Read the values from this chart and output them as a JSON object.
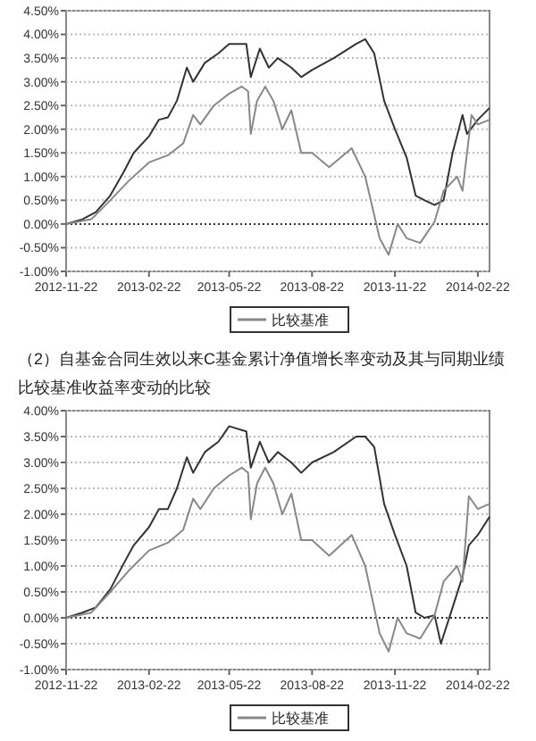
{
  "chart_data": [
    {
      "type": "line",
      "xlim": [
        "2012-11-22",
        "2014-03-07"
      ],
      "xticks": [
        "2012-11-22",
        "2013-02-22",
        "2013-05-22",
        "2013-08-22",
        "2013-11-22",
        "2014-02-22"
      ],
      "ref_lines": [
        {
          "axis": "y",
          "value": 0,
          "color": "#333333",
          "line_style": "dotted"
        }
      ],
      "ylim": [
        -1,
        4.5
      ],
      "yticks": [
        {
          "value": -1,
          "label": "-1.00%"
        },
        {
          "value": -0.5,
          "label": "-0.50%"
        },
        {
          "value": 0,
          "label": "0.00%"
        },
        {
          "value": 0.5,
          "label": "0.50%"
        },
        {
          "value": 1,
          "label": "1.00%"
        },
        {
          "value": 1.5,
          "label": "1.50%"
        },
        {
          "value": 2,
          "label": "2.00%"
        },
        {
          "value": 2.5,
          "label": "2.50%"
        },
        {
          "value": 3,
          "label": "3.00%"
        },
        {
          "value": 3.5,
          "label": "3.50%"
        },
        {
          "value": 4,
          "label": "4.00%"
        },
        {
          "value": 4.5,
          "label": "4.50%"
        }
      ],
      "grid": "y",
      "legend": "bottom",
      "line_style": "solid",
      "series": [
        {
          "color": "#333333",
          "x": [
            "2012-11-22",
            "2012-12-10",
            "2012-12-25",
            "2013-01-10",
            "2013-01-25",
            "2013-02-05",
            "2013-02-22",
            "2013-03-05",
            "2013-03-15",
            "2013-03-25",
            "2013-04-05",
            "2013-04-12",
            "2013-04-25",
            "2013-05-10",
            "2013-05-22",
            "2013-06-10",
            "2013-06-15",
            "2013-06-25",
            "2013-07-05",
            "2013-07-15",
            "2013-07-30",
            "2013-08-10",
            "2013-08-22",
            "2013-09-15",
            "2013-10-10",
            "2013-10-20",
            "2013-10-30",
            "2013-11-10",
            "2013-11-22",
            "2013-12-05",
            "2013-12-15",
            "2013-12-25",
            "2014-01-05",
            "2014-01-15",
            "2014-01-25",
            "2014-02-05",
            "2014-02-10",
            "2014-02-22",
            "2014-03-07"
          ],
          "values": [
            0,
            0.1,
            0.25,
            0.6,
            1.1,
            1.5,
            1.85,
            2.2,
            2.25,
            2.6,
            3.3,
            3.0,
            3.4,
            3.6,
            3.8,
            3.8,
            3.1,
            3.7,
            3.3,
            3.5,
            3.3,
            3.1,
            3.25,
            3.5,
            3.8,
            3.9,
            3.6,
            2.6,
            2.0,
            1.4,
            0.6,
            0.5,
            0.4,
            0.5,
            1.5,
            2.3,
            1.9,
            2.2,
            2.45
          ]
        },
        {
          "name": "比较基准",
          "color": "#888888",
          "x": [
            "2012-11-22",
            "2012-12-20",
            "2013-01-10",
            "2013-01-30",
            "2013-02-22",
            "2013-03-15",
            "2013-04-01",
            "2013-04-12",
            "2013-04-20",
            "2013-05-05",
            "2013-05-22",
            "2013-06-05",
            "2013-06-12",
            "2013-06-15",
            "2013-06-22",
            "2013-07-01",
            "2013-07-10",
            "2013-07-20",
            "2013-07-30",
            "2013-08-10",
            "2013-08-22",
            "2013-09-10",
            "2013-10-05",
            "2013-10-20",
            "2013-11-05",
            "2013-11-15",
            "2013-11-25",
            "2013-12-05",
            "2013-12-20",
            "2014-01-05",
            "2014-01-15",
            "2014-01-30",
            "2014-02-05",
            "2014-02-15",
            "2014-02-22",
            "2014-03-07"
          ],
          "values": [
            0,
            0.1,
            0.5,
            0.9,
            1.3,
            1.45,
            1.7,
            2.3,
            2.1,
            2.5,
            2.75,
            2.9,
            2.8,
            1.9,
            2.6,
            2.9,
            2.6,
            2.0,
            2.4,
            1.5,
            1.5,
            1.2,
            1.6,
            1.0,
            -0.3,
            -0.65,
            0.0,
            -0.3,
            -0.4,
            0.05,
            0.7,
            1.0,
            0.7,
            2.3,
            2.1,
            2.2
          ]
        }
      ]
    },
    {
      "type": "line",
      "title": "（2）自基金合同生效以来C基金累计净值增长率变动及其与同期业绩比较基准收益率变动的比较",
      "xlim": [
        "2012-11-22",
        "2014-03-07"
      ],
      "xticks": [
        "2012-11-22",
        "2013-02-22",
        "2013-05-22",
        "2013-08-22",
        "2013-11-22",
        "2014-02-22"
      ],
      "ref_lines": [
        {
          "axis": "y",
          "value": 0,
          "color": "#333333",
          "line_style": "dotted"
        }
      ],
      "ylim": [
        -1,
        4
      ],
      "yticks": [
        {
          "value": -1,
          "label": "-1.00%"
        },
        {
          "value": -0.5,
          "label": "-0.50%"
        },
        {
          "value": 0,
          "label": "0.00%"
        },
        {
          "value": 0.5,
          "label": "0.50%"
        },
        {
          "value": 1,
          "label": "1.00%"
        },
        {
          "value": 1.5,
          "label": "1.50%"
        },
        {
          "value": 2,
          "label": "2.00%"
        },
        {
          "value": 2.5,
          "label": "2.50%"
        },
        {
          "value": 3,
          "label": "3.00%"
        },
        {
          "value": 3.5,
          "label": "3.50%"
        },
        {
          "value": 4,
          "label": "4.00%"
        }
      ],
      "grid": "y",
      "legend": "bottom",
      "line_style": "solid",
      "series": [
        {
          "color": "#333333",
          "x": [
            "2012-11-22",
            "2012-12-10",
            "2012-12-25",
            "2013-01-10",
            "2013-01-25",
            "2013-02-05",
            "2013-02-22",
            "2013-03-05",
            "2013-03-15",
            "2013-03-25",
            "2013-04-05",
            "2013-04-12",
            "2013-04-25",
            "2013-05-10",
            "2013-05-22",
            "2013-06-10",
            "2013-06-15",
            "2013-06-25",
            "2013-07-05",
            "2013-07-15",
            "2013-07-30",
            "2013-08-10",
            "2013-08-22",
            "2013-09-15",
            "2013-10-10",
            "2013-10-20",
            "2013-10-30",
            "2013-11-10",
            "2013-11-22",
            "2013-12-05",
            "2013-12-15",
            "2013-12-25",
            "2014-01-05",
            "2014-01-12",
            "2014-01-25",
            "2014-02-05",
            "2014-02-12",
            "2014-02-22",
            "2014-03-07"
          ],
          "values": [
            0,
            0.1,
            0.2,
            0.55,
            1.05,
            1.4,
            1.75,
            2.1,
            2.1,
            2.5,
            3.1,
            2.8,
            3.2,
            3.4,
            3.7,
            3.6,
            2.9,
            3.4,
            3.0,
            3.2,
            3.0,
            2.8,
            3.0,
            3.2,
            3.5,
            3.5,
            3.3,
            2.2,
            1.6,
            1.0,
            0.1,
            0.0,
            0.05,
            -0.5,
            0.2,
            0.8,
            1.4,
            1.6,
            1.95
          ]
        },
        {
          "name": "比较基准",
          "color": "#888888",
          "x": [
            "2012-11-22",
            "2012-12-20",
            "2013-01-10",
            "2013-01-30",
            "2013-02-22",
            "2013-03-15",
            "2013-04-01",
            "2013-04-12",
            "2013-04-20",
            "2013-05-05",
            "2013-05-22",
            "2013-06-05",
            "2013-06-12",
            "2013-06-15",
            "2013-06-22",
            "2013-07-01",
            "2013-07-10",
            "2013-07-20",
            "2013-07-30",
            "2013-08-10",
            "2013-08-22",
            "2013-09-10",
            "2013-10-05",
            "2013-10-20",
            "2013-11-05",
            "2013-11-15",
            "2013-11-25",
            "2013-12-05",
            "2013-12-20",
            "2014-01-05",
            "2014-01-15",
            "2014-01-30",
            "2014-02-05",
            "2014-02-12",
            "2014-02-22",
            "2014-03-07"
          ],
          "values": [
            0,
            0.1,
            0.5,
            0.9,
            1.3,
            1.45,
            1.7,
            2.3,
            2.1,
            2.5,
            2.75,
            2.9,
            2.8,
            1.9,
            2.6,
            2.9,
            2.6,
            2.0,
            2.4,
            1.5,
            1.5,
            1.2,
            1.6,
            1.0,
            -0.3,
            -0.65,
            0.0,
            -0.3,
            -0.4,
            0.05,
            0.7,
            1.0,
            0.7,
            2.35,
            2.1,
            2.2
          ]
        }
      ]
    }
  ]
}
